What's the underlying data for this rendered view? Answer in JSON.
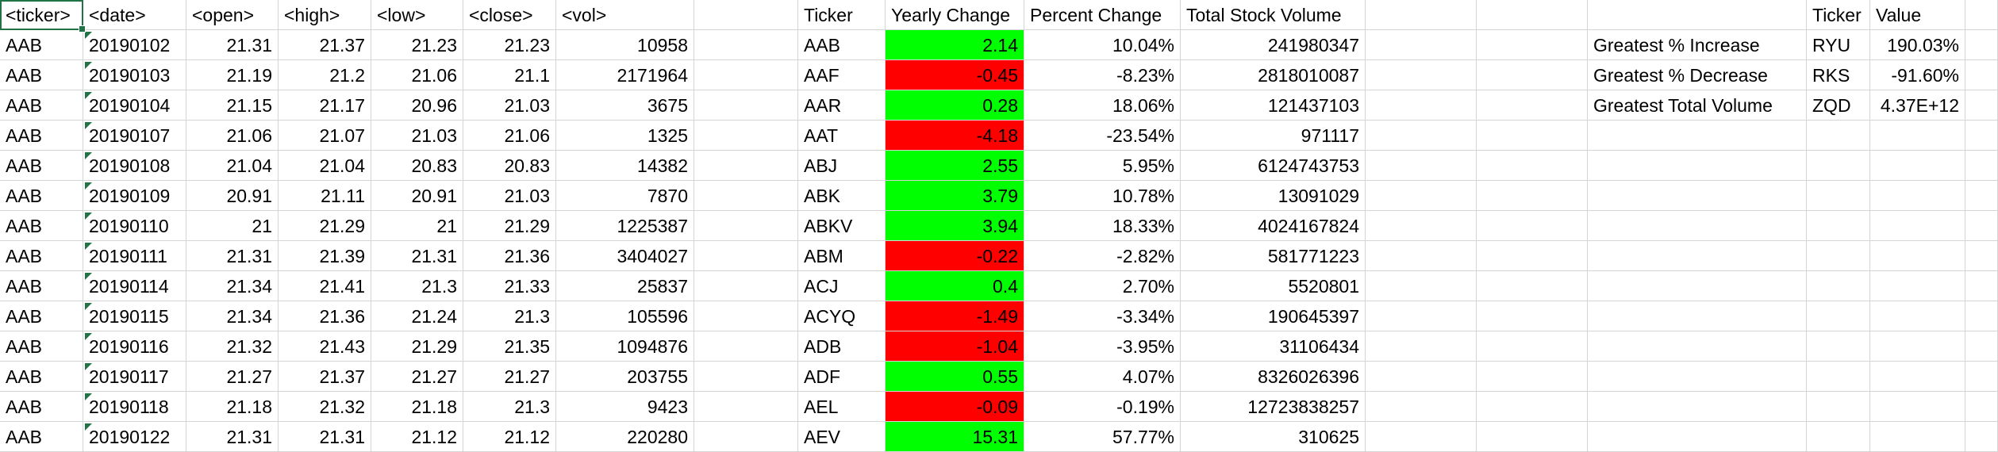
{
  "colors": {
    "positive": "#00ff00",
    "negative": "#ff0000",
    "selection": "#217346",
    "gridline": "#d4d4d4"
  },
  "raw": {
    "headers": [
      "<ticker>",
      "<date>",
      "<open>",
      "<high>",
      "<low>",
      "<close>",
      "<vol>"
    ],
    "rows": [
      [
        "AAB",
        "20190102",
        "21.31",
        "21.37",
        "21.23",
        "21.23",
        "10958"
      ],
      [
        "AAB",
        "20190103",
        "21.19",
        "21.2",
        "21.06",
        "21.1",
        "2171964"
      ],
      [
        "AAB",
        "20190104",
        "21.15",
        "21.17",
        "20.96",
        "21.03",
        "3675"
      ],
      [
        "AAB",
        "20190107",
        "21.06",
        "21.07",
        "21.03",
        "21.06",
        "1325"
      ],
      [
        "AAB",
        "20190108",
        "21.04",
        "21.04",
        "20.83",
        "20.83",
        "14382"
      ],
      [
        "AAB",
        "20190109",
        "20.91",
        "21.11",
        "20.91",
        "21.03",
        "7870"
      ],
      [
        "AAB",
        "20190110",
        "21",
        "21.29",
        "21",
        "21.29",
        "1225387"
      ],
      [
        "AAB",
        "20190111",
        "21.31",
        "21.39",
        "21.31",
        "21.36",
        "3404027"
      ],
      [
        "AAB",
        "20190114",
        "21.34",
        "21.41",
        "21.3",
        "21.33",
        "25837"
      ],
      [
        "AAB",
        "20190115",
        "21.34",
        "21.36",
        "21.24",
        "21.3",
        "105596"
      ],
      [
        "AAB",
        "20190116",
        "21.32",
        "21.43",
        "21.29",
        "21.35",
        "1094876"
      ],
      [
        "AAB",
        "20190117",
        "21.27",
        "21.37",
        "21.27",
        "21.27",
        "203755"
      ],
      [
        "AAB",
        "20190118",
        "21.18",
        "21.32",
        "21.18",
        "21.3",
        "9423"
      ],
      [
        "AAB",
        "20190122",
        "21.31",
        "21.31",
        "21.12",
        "21.12",
        "220280"
      ]
    ]
  },
  "summary": {
    "headers": [
      "Ticker",
      "Yearly Change",
      "Percent Change",
      "Total Stock Volume"
    ],
    "rows": [
      [
        "AAB",
        "2.14",
        "10.04%",
        "241980347"
      ],
      [
        "AAF",
        "-0.45",
        "-8.23%",
        "2818010087"
      ],
      [
        "AAR",
        "0.28",
        "18.06%",
        "121437103"
      ],
      [
        "AAT",
        "-4.18",
        "-23.54%",
        "971117"
      ],
      [
        "ABJ",
        "2.55",
        "5.95%",
        "6124743753"
      ],
      [
        "ABK",
        "3.79",
        "10.78%",
        "13091029"
      ],
      [
        "ABKV",
        "3.94",
        "18.33%",
        "4024167824"
      ],
      [
        "ABM",
        "-0.22",
        "-2.82%",
        "581771223"
      ],
      [
        "ACJ",
        "0.4",
        "2.70%",
        "5520801"
      ],
      [
        "ACYQ",
        "-1.49",
        "-3.34%",
        "190645397"
      ],
      [
        "ADB",
        "-1.04",
        "-3.95%",
        "31106434"
      ],
      [
        "ADF",
        "0.55",
        "4.07%",
        "8326026396"
      ],
      [
        "AEL",
        "-0.09",
        "-0.19%",
        "12723838257"
      ],
      [
        "AEV",
        "15.31",
        "57.77%",
        "310625"
      ]
    ]
  },
  "greatest": {
    "headers": [
      "Ticker",
      "Value"
    ],
    "rows": [
      [
        "Greatest % Increase",
        "RYU",
        "190.03%"
      ],
      [
        "Greatest % Decrease",
        "RKS",
        "-91.60%"
      ],
      [
        "Greatest Total Volume",
        "ZQD",
        "4.37E+12"
      ]
    ]
  }
}
